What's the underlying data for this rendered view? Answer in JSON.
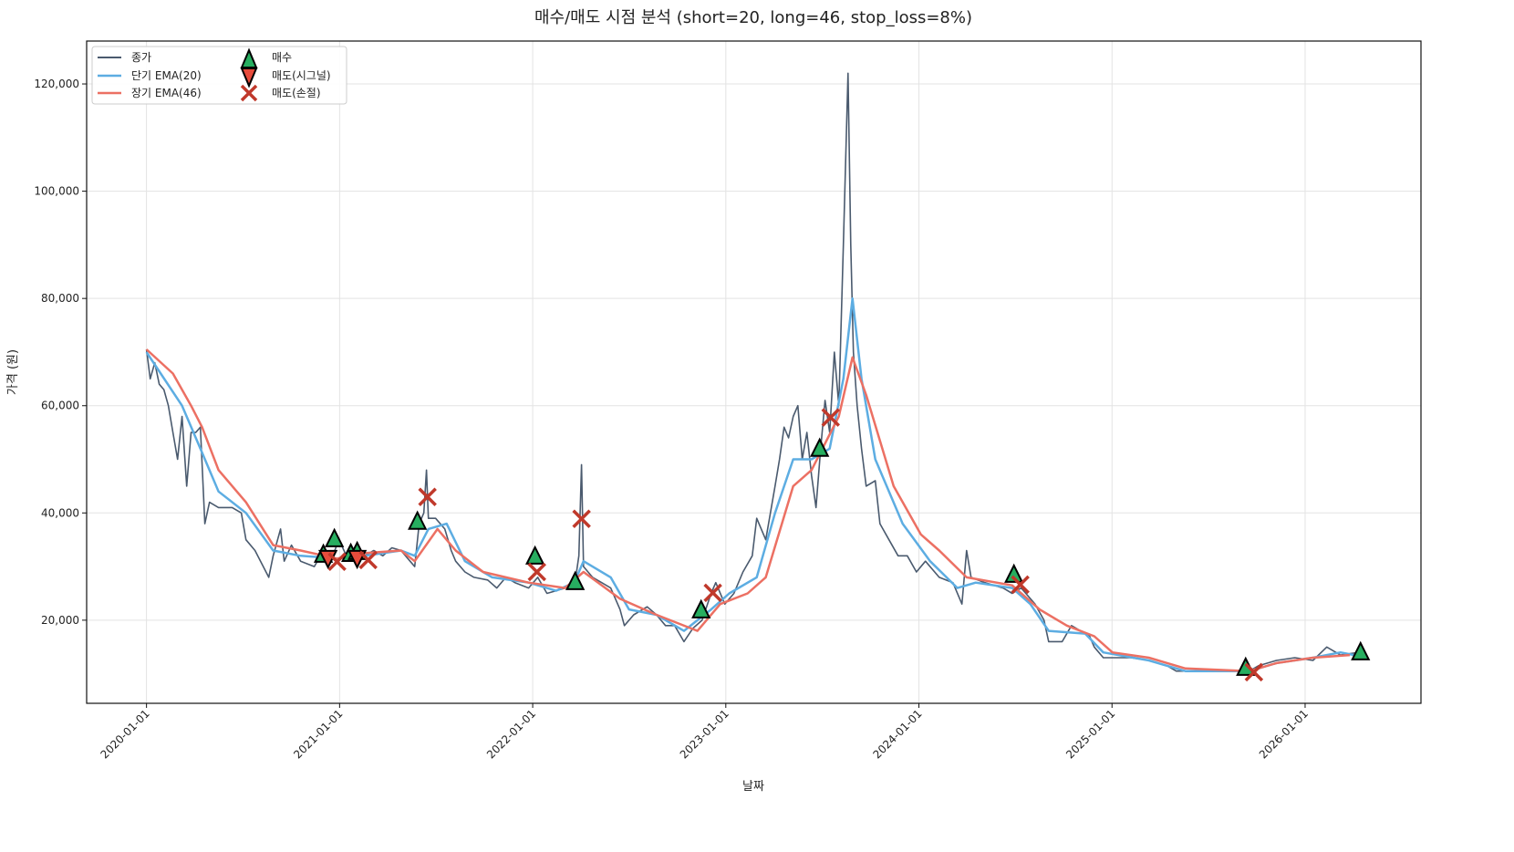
{
  "chart_data": {
    "type": "line",
    "title": "매수/매도 시점 분석 (short=20, long=46, stop_loss=8%)",
    "xlabel": "날짜",
    "ylabel": "가격 (원)",
    "x_units": "years since 2020-01-01",
    "xlim": [
      -0.31,
      6.6
    ],
    "ylim": [
      4500,
      128000
    ],
    "grid": true,
    "legend_placement": "top-left",
    "x_ticks": [
      {
        "value": 0,
        "label": "2020-01-01"
      },
      {
        "value": 1,
        "label": "2021-01-01"
      },
      {
        "value": 2,
        "label": "2022-01-01"
      },
      {
        "value": 3,
        "label": "2023-01-01"
      },
      {
        "value": 4,
        "label": "2024-01-01"
      },
      {
        "value": 5,
        "label": "2025-01-01"
      },
      {
        "value": 6,
        "label": "2026-01-01"
      }
    ],
    "y_ticks": [
      {
        "value": 20000,
        "label": "20,000"
      },
      {
        "value": 40000,
        "label": "40,000"
      },
      {
        "value": 60000,
        "label": "60,000"
      },
      {
        "value": 80000,
        "label": "80,000"
      },
      {
        "value": 100000,
        "label": "100,000"
      },
      {
        "value": 120000,
        "label": "120,000"
      }
    ],
    "series": [
      {
        "name": "종가",
        "color": "#4a5a6e",
        "x": [
          0,
          0.019,
          0.043,
          0.066,
          0.09,
          0.113,
          0.137,
          0.161,
          0.184,
          0.208,
          0.231,
          0.255,
          0.279,
          0.302,
          0.326,
          0.373,
          0.444,
          0.491,
          0.515,
          0.562,
          0.633,
          0.656,
          0.694,
          0.713,
          0.751,
          0.798,
          0.869,
          0.916,
          0.964,
          0.997,
          1.035,
          1.082,
          1.129,
          1.177,
          1.224,
          1.271,
          1.318,
          1.365,
          1.389,
          1.412,
          1.436,
          1.45,
          1.46,
          1.497,
          1.545,
          1.578,
          1.601,
          1.649,
          1.696,
          1.767,
          1.814,
          1.861,
          1.908,
          1.979,
          2.026,
          2.074,
          2.121,
          2.168,
          2.215,
          2.239,
          2.253,
          2.263,
          2.31,
          2.357,
          2.404,
          2.452,
          2.475,
          2.523,
          2.593,
          2.641,
          2.688,
          2.735,
          2.783,
          2.83,
          2.877,
          2.924,
          2.948,
          2.995,
          3.042,
          3.089,
          3.137,
          3.16,
          3.207,
          3.255,
          3.278,
          3.302,
          3.325,
          3.349,
          3.373,
          3.396,
          3.42,
          3.444,
          3.467,
          3.491,
          3.514,
          3.538,
          3.562,
          3.585,
          3.609,
          3.633,
          3.647,
          3.661,
          3.68,
          3.703,
          3.727,
          3.774,
          3.798,
          3.845,
          3.892,
          3.94,
          3.987,
          4.034,
          4.105,
          4.176,
          4.223,
          4.247,
          4.27,
          4.341,
          4.436,
          4.483,
          4.53,
          4.601,
          4.648,
          4.672,
          4.742,
          4.79,
          4.837,
          4.884,
          4.908,
          4.955,
          5.026,
          5.097,
          5.191,
          5.286,
          5.333,
          5.427,
          5.569,
          5.711,
          5.758,
          5.852,
          5.947,
          6.041,
          6.112,
          6.183,
          6.278
        ],
        "values": [
          70500,
          65000,
          68000,
          64000,
          63000,
          60000,
          55000,
          50000,
          58000,
          45000,
          55000,
          55000,
          56000,
          38000,
          42000,
          41000,
          41000,
          40000,
          35000,
          33000,
          28000,
          32000,
          37000,
          31000,
          34000,
          31000,
          30000,
          33000,
          32000,
          35000,
          32000,
          33000,
          32000,
          33000,
          32000,
          33500,
          33000,
          31000,
          30000,
          38000,
          40000,
          48000,
          39000,
          39000,
          37000,
          33000,
          31000,
          29000,
          28000,
          27500,
          26000,
          28000,
          27000,
          26000,
          28000,
          25000,
          25500,
          26000,
          26000,
          32000,
          49000,
          30000,
          28000,
          27000,
          26000,
          22000,
          19000,
          21000,
          22500,
          21000,
          19000,
          19000,
          16000,
          18500,
          20000,
          25000,
          27000,
          23000,
          25000,
          29000,
          32000,
          39000,
          35000,
          45000,
          50000,
          56000,
          54000,
          58000,
          60000,
          50000,
          55000,
          47000,
          41000,
          52000,
          61000,
          55000,
          70000,
          60000,
          90000,
          122000,
          90000,
          70000,
          60000,
          52000,
          45000,
          46000,
          38000,
          35000,
          32000,
          32000,
          29000,
          31000,
          28000,
          27000,
          23000,
          33000,
          28000,
          27000,
          26000,
          25000,
          26000,
          23000,
          20000,
          16000,
          16000,
          19000,
          18000,
          17000,
          15000,
          13000,
          13000,
          13000,
          12500,
          11500,
          10500,
          10500,
          10500,
          10500,
          11500,
          12500,
          13000,
          12500,
          15000,
          13500,
          14000
        ]
      },
      {
        "name": "단기 EMA(20)",
        "color": "#5dade2",
        "x": [
          0,
          0.184,
          0.279,
          0.373,
          0.515,
          0.656,
          0.798,
          0.987,
          1.129,
          1.318,
          1.389,
          1.46,
          1.554,
          1.649,
          1.79,
          1.979,
          2.121,
          2.215,
          2.263,
          2.404,
          2.499,
          2.641,
          2.783,
          2.924,
          3.018,
          3.16,
          3.255,
          3.349,
          3.444,
          3.538,
          3.609,
          3.656,
          3.703,
          3.774,
          3.916,
          4.058,
          4.199,
          4.294,
          4.483,
          4.577,
          4.672,
          4.861,
          4.955,
          5.191,
          5.38,
          5.711,
          5.852,
          6.041,
          6.183,
          6.254
        ],
        "values": [
          70000,
          60000,
          52000,
          44000,
          40000,
          33000,
          32000,
          31500,
          32000,
          33000,
          32000,
          37000,
          38000,
          31000,
          28000,
          27000,
          25500,
          27000,
          31000,
          28000,
          22000,
          21000,
          18000,
          22000,
          25000,
          28000,
          40000,
          50000,
          50000,
          52000,
          65000,
          80000,
          65000,
          50000,
          38000,
          31000,
          26000,
          27000,
          26000,
          23000,
          18000,
          17500,
          14000,
          12500,
          10500,
          10500,
          12000,
          13000,
          14000,
          13500
        ]
      },
      {
        "name": "장기 EMA(46)",
        "color": "#ec7063",
        "x": [
          0,
          0.137,
          0.231,
          0.288,
          0.373,
          0.515,
          0.656,
          0.798,
          0.987,
          1.129,
          1.318,
          1.389,
          1.507,
          1.601,
          1.743,
          1.979,
          2.168,
          2.263,
          2.452,
          2.641,
          2.853,
          2.971,
          3.113,
          3.207,
          3.349,
          3.444,
          3.585,
          3.656,
          3.727,
          3.869,
          4.01,
          4.105,
          4.247,
          4.483,
          4.625,
          4.766,
          4.908,
          5.002,
          5.191,
          5.38,
          5.711,
          5.852,
          6.041,
          6.231
        ],
        "values": [
          70500,
          66000,
          60000,
          56000,
          48000,
          42000,
          34000,
          33000,
          31500,
          32500,
          33000,
          31000,
          37000,
          33000,
          29000,
          27000,
          26000,
          29000,
          24000,
          21000,
          18000,
          23000,
          25000,
          28000,
          45000,
          48000,
          58000,
          69000,
          62000,
          45000,
          36000,
          33000,
          28000,
          26500,
          22000,
          19000,
          17000,
          14000,
          13000,
          11000,
          10500,
          12000,
          13000,
          13500
        ]
      }
    ],
    "markers": [
      {
        "name": "매수",
        "shape": "triangle-up",
        "color": "#27ae60",
        "x": [
          0.916,
          0.973,
          1.058,
          1.091,
          1.403,
          2.012,
          2.22,
          2.872,
          3.486,
          4.492,
          5.692,
          6.287
        ],
        "values": [
          32250,
          35150,
          32400,
          32750,
          38400,
          31900,
          27150,
          21870,
          52000,
          28500,
          11150,
          14040
        ]
      },
      {
        "name": "매도(시그널)",
        "shape": "triangle-down",
        "color": "#e74c3c",
        "x": [
          0.94,
          1.091
        ],
        "values": [
          31570,
          31570
        ]
      },
      {
        "name": "매도(손절)",
        "shape": "x",
        "color": "#c0392b",
        "x": [
          0.987,
          1.148,
          1.455,
          2.022,
          2.253,
          2.933,
          3.543,
          4.525,
          5.735
        ],
        "values": [
          30900,
          31230,
          42980,
          29000,
          38900,
          25100,
          57800,
          26640,
          10300
        ]
      }
    ]
  }
}
